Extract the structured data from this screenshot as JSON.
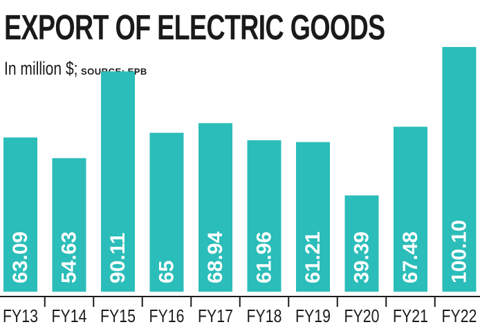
{
  "header": {
    "title": "EXPORT OF ELECTRIC GOODS",
    "unit": "In million $;",
    "source": "SOURCE: EPB"
  },
  "colors": {
    "bar": "#2bbdb9",
    "value_label": "#ffffff",
    "text": "#1a1a1a"
  },
  "chart_data": {
    "type": "bar",
    "title": "EXPORT OF ELECTRIC GOODS",
    "subtitle": "In million $; SOURCE: EPB",
    "xlabel": "",
    "ylabel": "",
    "categories": [
      "FY13",
      "FY14",
      "FY15",
      "FY16",
      "FY17",
      "FY18",
      "FY19",
      "FY20",
      "FY21",
      "FY22"
    ],
    "values": [
      63.09,
      54.63,
      90.11,
      65,
      68.94,
      61.96,
      61.21,
      39.39,
      67.48,
      100.1
    ],
    "value_labels": [
      "63.09",
      "54.63",
      "90.11",
      "65",
      "68.94",
      "61.96",
      "61.21",
      "39.39",
      "67.48",
      "100.10"
    ],
    "ylim": [
      0,
      100.1
    ],
    "grid": false,
    "legend": "none"
  }
}
